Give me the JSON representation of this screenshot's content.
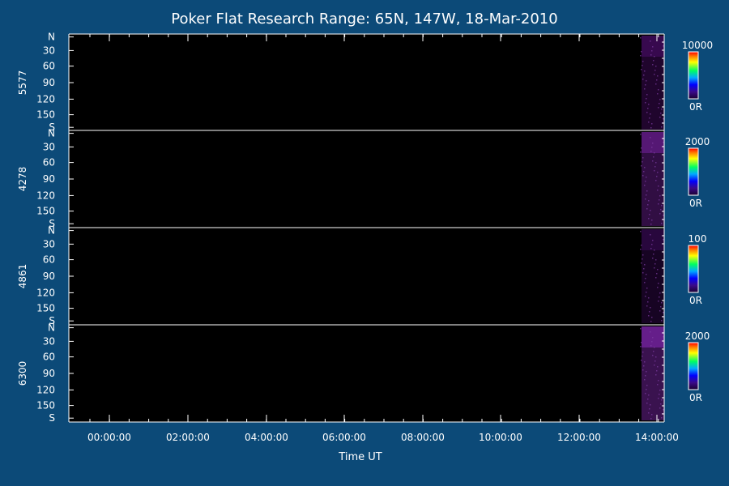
{
  "chart_data": {
    "type": "heatmap",
    "title": "Poker Flat Research Range: 65N, 147W, 18-Mar-2010",
    "xlabel": "Time UT",
    "x_ticks": [
      "00:00:00",
      "02:00:00",
      "04:00:00",
      "06:00:00",
      "08:00:00",
      "10:00:00",
      "12:00:00",
      "14:00:00"
    ],
    "y_ticks": [
      "N",
      "30",
      "60",
      "90",
      "120",
      "150",
      "S"
    ],
    "panels": [
      {
        "name": "5577",
        "colorbar_max": "10000",
        "colorbar_min": "0R",
        "activity_color": "#3a0a52"
      },
      {
        "name": "4278",
        "colorbar_max": "2000",
        "colorbar_min": "0R",
        "activity_color": "#5a1a7a"
      },
      {
        "name": "4861",
        "colorbar_max": "100",
        "colorbar_min": "0R",
        "activity_color": "#2a0840"
      },
      {
        "name": "6300",
        "colorbar_max": "2000",
        "colorbar_min": "0R",
        "activity_color": "#6a2090"
      }
    ],
    "colorscale": [
      "#1a0030",
      "#3a0a8a",
      "#0000ff",
      "#00aaff",
      "#00ff60",
      "#ffff00",
      "#ff8000",
      "#ff0000"
    ],
    "background_color": "#0c4a78",
    "plot_color": "#000000"
  }
}
